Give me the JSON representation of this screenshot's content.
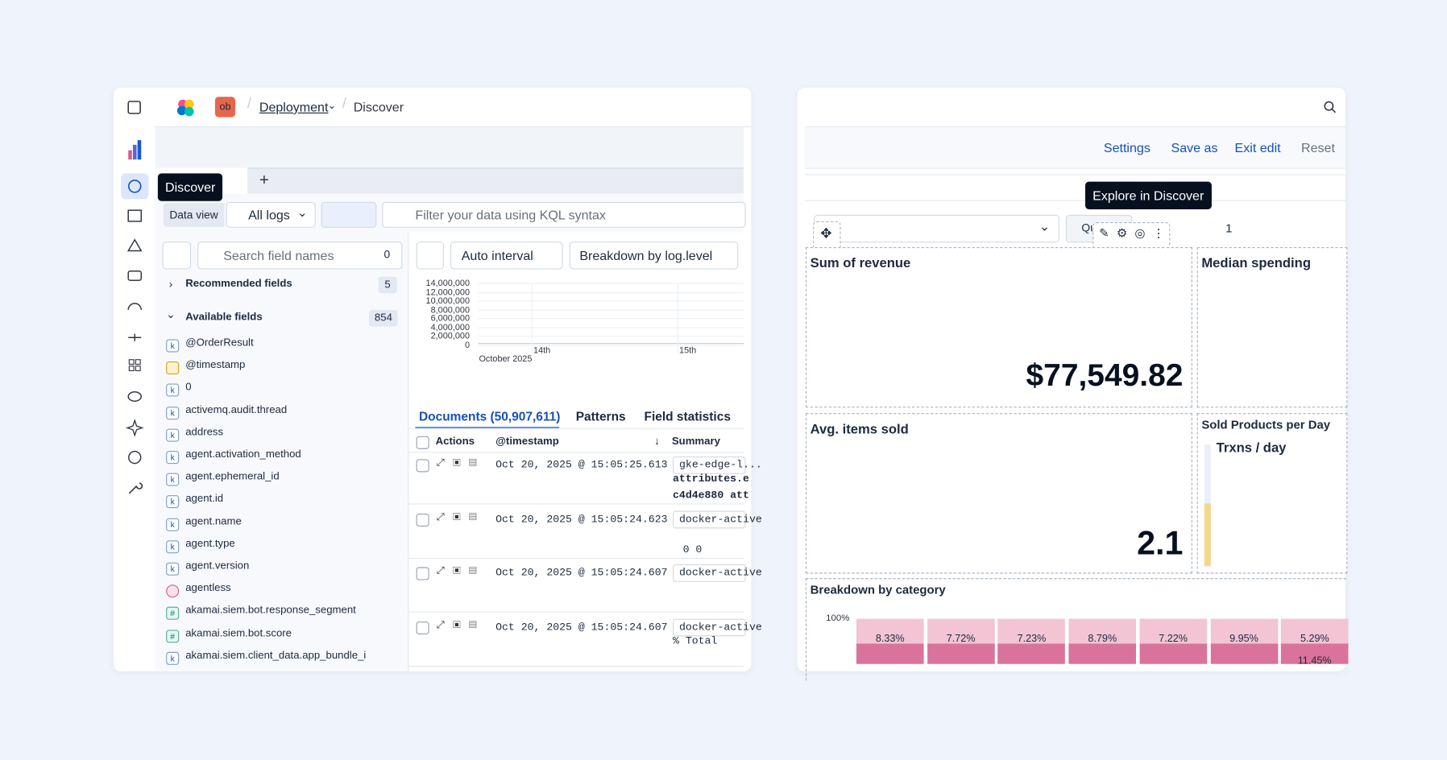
{
  "discover": {
    "avatar": "ob",
    "breadcrumb": [
      "Deployment",
      "Discover"
    ],
    "tooltip": "Discover",
    "tab_add": "+",
    "data_view_label": "Data view",
    "data_view": "All logs",
    "query_placeholder": "Filter your data using KQL syntax",
    "field_search_placeholder": "Search field names",
    "filter_count": 0,
    "recommended": {
      "label": "Recommended fields",
      "count": 5
    },
    "available": {
      "label": "Available fields",
      "count": 854
    },
    "fields": [
      {
        "icon": "k",
        "name": "@OrderResult"
      },
      {
        "icon": "date",
        "name": "@timestamp"
      },
      {
        "icon": "k",
        "name": "0"
      },
      {
        "icon": "k",
        "name": "activemq.audit.thread"
      },
      {
        "icon": "k",
        "name": "address"
      },
      {
        "icon": "k",
        "name": "agent.activation_method"
      },
      {
        "icon": "k",
        "name": "agent.ephemeral_id"
      },
      {
        "icon": "k",
        "name": "agent.id"
      },
      {
        "icon": "k",
        "name": "agent.name"
      },
      {
        "icon": "k",
        "name": "agent.type"
      },
      {
        "icon": "k",
        "name": "agent.version"
      },
      {
        "icon": "geo",
        "name": "agentless"
      },
      {
        "icon": "#",
        "name": "akamai.siem.bot.response_segment"
      },
      {
        "icon": "#",
        "name": "akamai.siem.bot.score"
      },
      {
        "icon": "k",
        "name": "akamai.siem.client_data.app_bundle_i"
      }
    ],
    "interval": "Auto interval",
    "breakdown": "Breakdown by log.level",
    "histogram": {
      "yticks": [
        "14,000,000",
        "12,000,000",
        "10,000,000",
        "8,000,000",
        "6,000,000",
        "4,000,000",
        "2,000,000",
        "0"
      ],
      "xticks": [
        "14th",
        "15th"
      ],
      "x_caption": "October 2025"
    },
    "tabs": [
      "Documents (50,907,611)",
      "Patterns",
      "Field statistics"
    ],
    "columns": [
      "Actions",
      "@timestamp",
      "Summary"
    ],
    "rows": [
      {
        "timestamp": "Oct 20, 2025 @ 15:05:25.613",
        "summary": [
          "gke-edge-l...",
          "attributes.e",
          "c4d4e880 att"
        ]
      },
      {
        "timestamp": "Oct 20, 2025 @ 15:05:24.623",
        "summary": [
          "docker-active",
          "",
          "0    0"
        ]
      },
      {
        "timestamp": "Oct 20, 2025 @ 15:05:24.607",
        "summary": [
          "docker-active"
        ]
      },
      {
        "timestamp": "Oct 20, 2025 @ 15:05:24.607",
        "summary": [
          "docker-active",
          "% Total"
        ]
      }
    ]
  },
  "dashboard": {
    "toolbar": [
      "Settings",
      "Save as",
      "Exit edit",
      "Reset"
    ],
    "tooltip": "Explore in Discover",
    "control_label": "Qu",
    "control_value": "1",
    "panels": [
      {
        "title": "Sum of revenue",
        "value": "$77,549.82"
      },
      {
        "title": "Median spending"
      },
      {
        "title": "Avg. items sold",
        "value": "2.1"
      },
      {
        "title": "Sold Products per Day",
        "value": "Trxns / day"
      }
    ],
    "breakdown": {
      "title": "Breakdown by category",
      "ytick": "100%",
      "labels": [
        "8.33%",
        "7.72%",
        "7.23%",
        "8.79%",
        "7.22%",
        "9.95%",
        "5.29%"
      ],
      "bottom_label": "11.45%"
    }
  }
}
